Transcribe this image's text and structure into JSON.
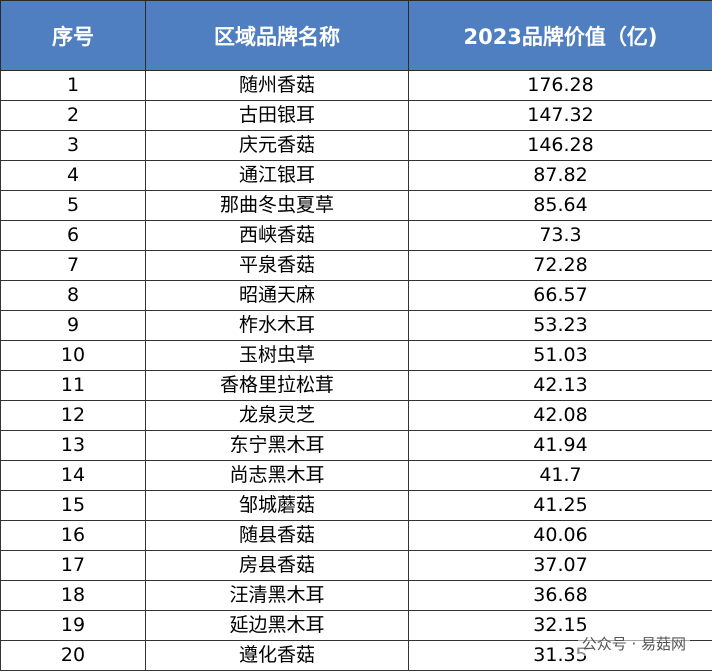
{
  "table": {
    "header": [
      "序号",
      "区域品牌名称",
      "2023品牌价值（亿)"
    ],
    "rows": [
      [
        "1",
        "随州香菇",
        "176.28"
      ],
      [
        "2",
        "古田银耳",
        "147.32"
      ],
      [
        "3",
        "庆元香菇",
        "146.28"
      ],
      [
        "4",
        "通江银耳",
        "87.82"
      ],
      [
        "5",
        "那曲冬虫夏草",
        "85.64"
      ],
      [
        "6",
        "西峡香菇",
        "73.3"
      ],
      [
        "7",
        "平泉香菇",
        "72.28"
      ],
      [
        "8",
        "昭通天麻",
        "66.57"
      ],
      [
        "9",
        "柞水木耳",
        "53.23"
      ],
      [
        "10",
        "玉树虫草",
        "51.03"
      ],
      [
        "11",
        "香格里拉松茸",
        "42.13"
      ],
      [
        "12",
        "龙泉灵芝",
        "42.08"
      ],
      [
        "13",
        "东宁黑木耳",
        "41.94"
      ],
      [
        "14",
        "尚志黑木耳",
        "41.7"
      ],
      [
        "15",
        "邹城蘑菇",
        "41.25"
      ],
      [
        "16",
        "随县香菇",
        "40.06"
      ],
      [
        "17",
        "房县香菇",
        "37.07"
      ],
      [
        "18",
        "汪清黑木耳",
        "36.68"
      ],
      [
        "19",
        "延边黑木耳",
        "32.15"
      ],
      [
        "20",
        "遵化香菇",
        "31.35"
      ]
    ]
  },
  "watermark": "公众号 · 易菇网"
}
